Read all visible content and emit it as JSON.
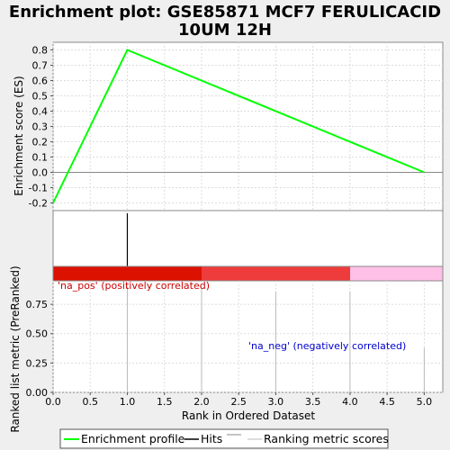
{
  "title_line1": "Enrichment plot: GSE85871 MCF7 FERULICACID",
  "title_line2": "10UM 12H",
  "es_ylabel": "Enrichment score (ES)",
  "rank_ylabel": "Ranked list metric (PreRanked)",
  "xlabel": "Rank in Ordered Dataset",
  "annotation_pos": "'na_pos' (positively correlated)",
  "annotation_neg": "'na_neg' (negatively correlated)",
  "legend": {
    "profile": "Enrichment profile",
    "hits": "Hits",
    "metric": "Ranking metric scores"
  },
  "colors": {
    "profile": "#00ff00",
    "hits": "#000000",
    "metric": "#bbbbbb",
    "pos_strong": "#dd1100",
    "pos_light": "#ee3b3b",
    "neg": "#ffc0e8",
    "ann_pos": "#cc0000",
    "ann_neg": "#0000cc"
  },
  "chart_data": [
    {
      "type": "line",
      "name": "enrichment-profile",
      "x": [
        0,
        1,
        5
      ],
      "y": [
        -0.2,
        0.8,
        0.0
      ],
      "xlim": [
        0,
        5.25
      ],
      "ylim": [
        -0.25,
        0.85
      ],
      "yticks": [
        -0.2,
        -0.1,
        0.0,
        0.1,
        0.2,
        0.3,
        0.4,
        0.5,
        0.6,
        0.7,
        0.8
      ],
      "ytick_labels": [
        "-0.2",
        "-0.1",
        "0.0",
        "0.1",
        "0.2",
        "0.3",
        "0.4",
        "0.5",
        "0.6",
        "0.7",
        "0.8"
      ],
      "ylabel": "Enrichment score (ES)",
      "grid": true
    },
    {
      "type": "bar",
      "name": "hits",
      "x": [
        1
      ]
    },
    {
      "type": "bar",
      "name": "ranked-list-metric",
      "x": [
        1,
        2,
        3,
        4,
        5
      ],
      "y": [
        0.9,
        0.9,
        0.86,
        0.86,
        0.38
      ],
      "xlim": [
        0,
        5.25
      ],
      "ylim": [
        0,
        0.95
      ],
      "xticks": [
        0.0,
        0.5,
        1.0,
        1.5,
        2.0,
        2.5,
        3.0,
        3.5,
        4.0,
        4.5,
        5.0
      ],
      "xtick_labels": [
        "0.0",
        "0.5",
        "1.0",
        "1.5",
        "2.0",
        "2.5",
        "3.0",
        "3.5",
        "4.0",
        "4.5",
        "5.0"
      ],
      "yticks": [
        0.0,
        0.25,
        0.5,
        0.75
      ],
      "ytick_labels": [
        "0.00",
        "0.25",
        "0.50",
        "0.75"
      ],
      "xlabel": "Rank in Ordered Dataset",
      "ylabel": "Ranked list metric (PreRanked)",
      "grid": true
    }
  ]
}
